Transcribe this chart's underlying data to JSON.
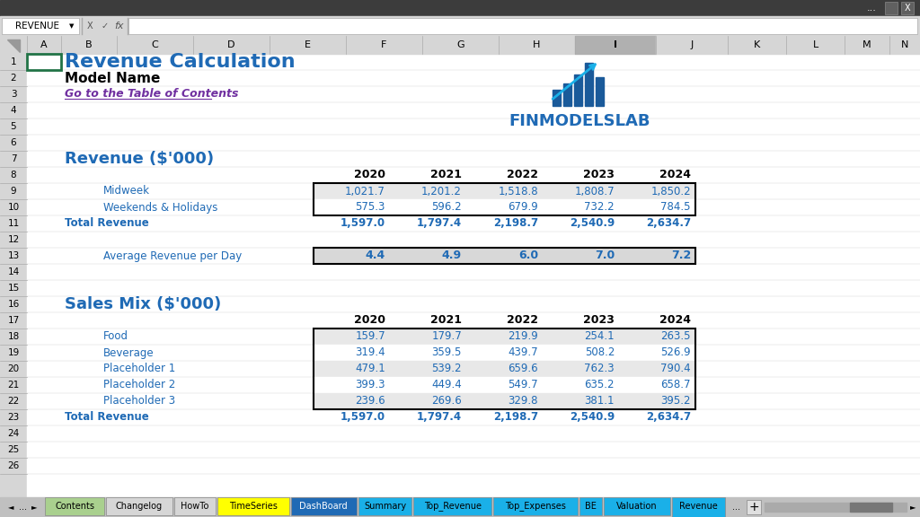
{
  "title": "Revenue Calculation",
  "subtitle": "Model Name",
  "link_text": "Go to the Table of Contents",
  "logo_text": "FINMODELSLAB",
  "section1_title": "Revenue ($'000)",
  "section2_title": "Sales Mix ($'000)",
  "years": [
    "2020",
    "2021",
    "2022",
    "2023",
    "2024"
  ],
  "revenue_labels": [
    "Midweek",
    "Weekends & Holidays",
    "Total Revenue"
  ],
  "revenue_data": [
    [
      1021.7,
      1201.2,
      1518.8,
      1808.7,
      1850.2
    ],
    [
      575.3,
      596.2,
      679.9,
      732.2,
      784.5
    ],
    [
      1597.0,
      1797.4,
      2198.7,
      2540.9,
      2634.7
    ]
  ],
  "avg_label": "Average Revenue per Day",
  "avg_data": [
    4.4,
    4.9,
    6.0,
    7.0,
    7.2
  ],
  "sales_labels": [
    "Food",
    "Beverage",
    "Placeholder 1",
    "Placeholder 2",
    "Placeholder 3",
    "Total Revenue"
  ],
  "sales_data": [
    [
      159.7,
      179.7,
      219.9,
      254.1,
      263.5
    ],
    [
      319.4,
      359.5,
      439.7,
      508.2,
      526.9
    ],
    [
      479.1,
      539.2,
      659.6,
      762.3,
      790.4
    ],
    [
      399.3,
      449.4,
      549.7,
      635.2,
      658.7
    ],
    [
      239.6,
      269.6,
      329.8,
      381.1,
      395.2
    ],
    [
      1597.0,
      1797.4,
      2198.7,
      2540.9,
      2634.7
    ]
  ],
  "data_text_color": "#1f6ab5",
  "total_text_color": "#1f6ab5",
  "header_text_color": "#000000",
  "section_title_color": "#1f6ab5",
  "title_color": "#1f6ab5",
  "subtitle_color": "#000000",
  "link_color": "#7030a0",
  "bg_color": "#ffffff",
  "cell_bg_light": "#e8e8e8",
  "cell_bg_white": "#ffffff",
  "cell_bg_avg": "#d8d8d8",
  "tabs": [
    {
      "name": "Contents",
      "color": "#a9d08e",
      "text": "black",
      "active": false
    },
    {
      "name": "Changelog",
      "color": "#d6d6d6",
      "text": "black",
      "active": false
    },
    {
      "name": "HowTo",
      "color": "#d6d6d6",
      "text": "black",
      "active": false
    },
    {
      "name": "TimeSeries",
      "color": "#ffff00",
      "text": "black",
      "active": false
    },
    {
      "name": "DashBoard",
      "color": "#1f6ab5",
      "text": "white",
      "active": false
    },
    {
      "name": "Summary",
      "color": "#1ab0e8",
      "text": "black",
      "active": false
    },
    {
      "name": "Top_Revenue",
      "color": "#1ab0e8",
      "text": "black",
      "active": false
    },
    {
      "name": "Top_Expenses",
      "color": "#1ab0e8",
      "text": "black",
      "active": false
    },
    {
      "name": "BE",
      "color": "#1ab0e8",
      "text": "black",
      "active": false
    },
    {
      "name": "Valuation",
      "color": "#1ab0e8",
      "text": "black",
      "active": false
    },
    {
      "name": "Revenue",
      "color": "#1ab0e8",
      "text": "black",
      "active": true
    }
  ]
}
